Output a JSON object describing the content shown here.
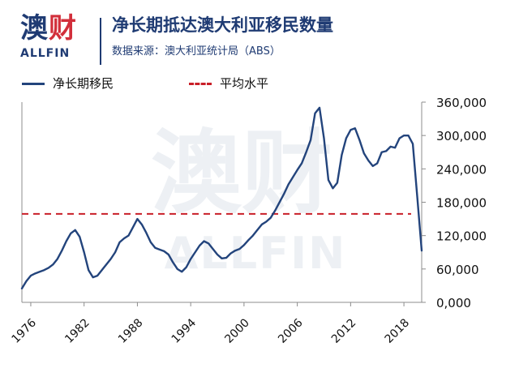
{
  "header": {
    "logo_mark_left": "澳",
    "logo_mark_right": "财",
    "logo_word": "ALLFIN",
    "title": "净长期抵达澳大利亚移民数量",
    "subtitle": "数据来源：澳大利亚统计局（ABS）"
  },
  "legend": {
    "items": [
      {
        "label": "净长期移民",
        "style": "solid",
        "color": "#23447c"
      },
      {
        "label": "平均水平",
        "style": "dashed",
        "color": "#c91f28"
      }
    ]
  },
  "watermark": {
    "main": "澳财",
    "sub": "ALLFIN"
  },
  "chart_data": {
    "type": "line",
    "x": [
      1975.0,
      1975.5,
      1976.0,
      1976.5,
      1977.0,
      1977.5,
      1978.0,
      1978.5,
      1979.0,
      1979.5,
      1980.0,
      1980.5,
      1981.0,
      1981.5,
      1982.0,
      1982.5,
      1983.0,
      1983.5,
      1984.0,
      1984.5,
      1985.0,
      1985.5,
      1986.0,
      1986.5,
      1987.0,
      1987.5,
      1988.0,
      1988.5,
      1989.0,
      1989.5,
      1990.0,
      1990.5,
      1991.0,
      1991.5,
      1992.0,
      1992.5,
      1993.0,
      1993.5,
      1994.0,
      1994.5,
      1995.0,
      1995.5,
      1996.0,
      1996.5,
      1997.0,
      1997.5,
      1998.0,
      1998.5,
      1999.0,
      1999.5,
      2000.0,
      2000.5,
      2001.0,
      2001.5,
      2002.0,
      2002.5,
      2003.0,
      2003.5,
      2004.0,
      2004.5,
      2005.0,
      2005.5,
      2006.0,
      2006.5,
      2007.0,
      2007.5,
      2008.0,
      2008.5,
      2009.0,
      2009.5,
      2010.0,
      2010.5,
      2011.0,
      2011.5,
      2012.0,
      2012.5,
      2013.0,
      2013.5,
      2014.0,
      2014.5,
      2015.0,
      2015.5,
      2016.0,
      2016.5,
      2017.0,
      2017.5,
      2018.0,
      2018.5,
      2019.0,
      2019.5,
      2020.0
    ],
    "series": [
      {
        "name": "净长期移民",
        "values": [
          25000,
          38000,
          48000,
          52000,
          55000,
          58000,
          62000,
          68000,
          78000,
          93000,
          110000,
          124000,
          130000,
          118000,
          90000,
          58000,
          45000,
          48000,
          58000,
          68000,
          78000,
          90000,
          108000,
          115000,
          120000,
          135000,
          150000,
          140000,
          125000,
          108000,
          98000,
          95000,
          92000,
          86000,
          72000,
          60000,
          55000,
          63000,
          78000,
          90000,
          102000,
          110000,
          106000,
          96000,
          86000,
          79000,
          80000,
          88000,
          93000,
          96000,
          103000,
          112000,
          120000,
          130000,
          140000,
          145000,
          152000,
          165000,
          180000,
          195000,
          212000,
          225000,
          238000,
          250000,
          270000,
          292000,
          340000,
          350000,
          295000,
          220000,
          205000,
          215000,
          265000,
          295000,
          310000,
          313000,
          292000,
          268000,
          255000,
          245000,
          250000,
          270000,
          272000,
          280000,
          278000,
          295000,
          300000,
          300000,
          285000,
          190000,
          93000
        ]
      }
    ],
    "average": 159000,
    "xlim": [
      1975,
      2020
    ],
    "ylim": [
      0,
      360000
    ],
    "xticks": [
      1976,
      1982,
      1988,
      1994,
      2000,
      2006,
      2012,
      2018
    ],
    "yticks": [
      0,
      60000,
      120000,
      180000,
      240000,
      300000,
      360000
    ],
    "ytick_labels": [
      "0,000",
      "60,000",
      "120,000",
      "180,000",
      "240,000",
      "300,000",
      "360,000"
    ],
    "grid": false,
    "legend_position": "top-left",
    "title": "净长期抵达澳大利亚移民数量",
    "subtitle": "数据来源：澳大利亚统计局（ABS）",
    "xlabel": "",
    "ylabel": ""
  }
}
